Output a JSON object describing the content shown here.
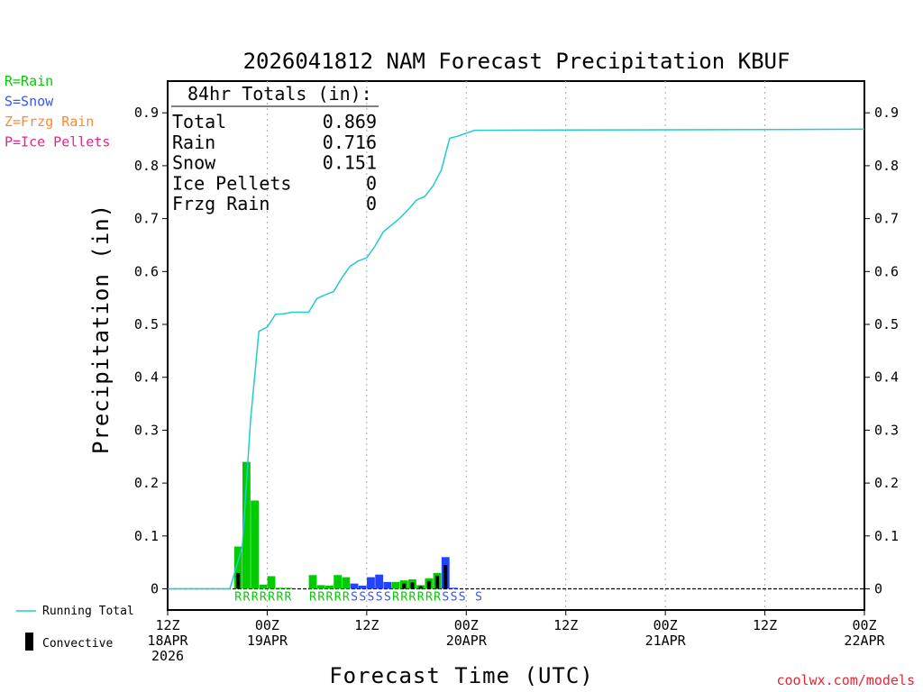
{
  "title": "2026041812 NAM Forecast Precipitation KBUF",
  "credit": "coolwx.com/models",
  "ptype_legend": [
    {
      "text": "R=Rain",
      "color": "#00cc00"
    },
    {
      "text": "S=Snow",
      "color": "#3355ff"
    },
    {
      "text": "Z=Frzg Rain",
      "color": "#ff8833"
    },
    {
      "text": "P=Ice Pellets",
      "color": "#ee2288"
    }
  ],
  "totals_box": {
    "header": "84hr Totals (in):",
    "rows": [
      {
        "label": "Total",
        "value": "0.869"
      },
      {
        "label": "Rain",
        "value": "0.716"
      },
      {
        "label": "Snow",
        "value": "0.151"
      },
      {
        "label": "Ice Pellets",
        "value": "0"
      },
      {
        "label": "Frzg Rain",
        "value": "0"
      }
    ]
  },
  "bottom_legend": {
    "running_total": "Running Total",
    "convective": "Convective"
  },
  "colors": {
    "rain": "#00cc00",
    "snow": "#2244ff",
    "running_total": "#22cccc",
    "convective": "#000000"
  },
  "chart_data": {
    "type": "bar",
    "title": "2026041812 NAM Forecast Precipitation KBUF",
    "xlabel": "Forecast Time (UTC)",
    "ylabel": "Precipitation (in)",
    "ylim": [
      -0.04,
      0.96
    ],
    "xlim_hours": [
      0,
      84
    ],
    "y_ticks": [
      0,
      0.1,
      0.2,
      0.3,
      0.4,
      0.5,
      0.6,
      0.7,
      0.8,
      0.9
    ],
    "y_tick_labels": [
      "0",
      "0.1",
      "0.2",
      "0.3",
      "0.4",
      "0.5",
      "0.6",
      "0.7",
      "0.8",
      "0.9"
    ],
    "x_ticks": [
      {
        "hour": 0,
        "lines": [
          "12Z",
          "18APR",
          "2026"
        ]
      },
      {
        "hour": 12,
        "lines": [
          "00Z",
          "19APR"
        ]
      },
      {
        "hour": 24,
        "lines": [
          "12Z"
        ]
      },
      {
        "hour": 36,
        "lines": [
          "00Z",
          "20APR"
        ]
      },
      {
        "hour": 48,
        "lines": [
          "12Z"
        ]
      },
      {
        "hour": 60,
        "lines": [
          "00Z",
          "21APR"
        ]
      },
      {
        "hour": 72,
        "lines": [
          "12Z"
        ]
      },
      {
        "hour": 84,
        "lines": [
          "00Z",
          "22APR"
        ]
      }
    ],
    "grid_vertical_dotted": true,
    "bars": [
      {
        "hour": 9,
        "value": 0.08,
        "ptype": "R",
        "conv": 0.03
      },
      {
        "hour": 10,
        "value": 0.24,
        "ptype": "R",
        "conv": 0
      },
      {
        "hour": 11,
        "value": 0.167,
        "ptype": "R",
        "conv": 0
      },
      {
        "hour": 12,
        "value": 0.008,
        "ptype": "R",
        "conv": 0
      },
      {
        "hour": 13,
        "value": 0.024,
        "ptype": "R",
        "conv": 0
      },
      {
        "hour": 14,
        "value": 0.002,
        "ptype": "R",
        "conv": 0
      },
      {
        "hour": 15,
        "value": 0.002,
        "ptype": "R",
        "conv": 0
      },
      {
        "hour": 18,
        "value": 0.026,
        "ptype": "R",
        "conv": 0
      },
      {
        "hour": 19,
        "value": 0.007,
        "ptype": "R",
        "conv": 0
      },
      {
        "hour": 20,
        "value": 0.006,
        "ptype": "R",
        "conv": 0
      },
      {
        "hour": 21,
        "value": 0.026,
        "ptype": "R",
        "conv": 0
      },
      {
        "hour": 22,
        "value": 0.022,
        "ptype": "R",
        "conv": 0
      },
      {
        "hour": 23,
        "value": 0.01,
        "ptype": "S",
        "conv": 0
      },
      {
        "hour": 24,
        "value": 0.006,
        "ptype": "S",
        "conv": 0
      },
      {
        "hour": 25,
        "value": 0.022,
        "ptype": "S",
        "conv": 0
      },
      {
        "hour": 26,
        "value": 0.027,
        "ptype": "S",
        "conv": 0
      },
      {
        "hour": 27,
        "value": 0.013,
        "ptype": "S",
        "conv": 0
      },
      {
        "hour": 28,
        "value": 0.013,
        "ptype": "R",
        "conv": 0
      },
      {
        "hour": 29,
        "value": 0.016,
        "ptype": "R",
        "conv": 0.01
      },
      {
        "hour": 30,
        "value": 0.018,
        "ptype": "R",
        "conv": 0.012
      },
      {
        "hour": 31,
        "value": 0.007,
        "ptype": "R",
        "conv": 0.005
      },
      {
        "hour": 32,
        "value": 0.02,
        "ptype": "R",
        "conv": 0.015
      },
      {
        "hour": 33,
        "value": 0.03,
        "ptype": "R",
        "conv": 0.025
      },
      {
        "hour": 34,
        "value": 0.06,
        "ptype": "S",
        "conv": 0.045
      },
      {
        "hour": 35,
        "value": 0.002,
        "ptype": "S",
        "conv": 0
      }
    ],
    "ptype_labels": [
      {
        "hour": 9,
        "text": "R",
        "color": "#00cc00"
      },
      {
        "hour": 10,
        "text": "R",
        "color": "#00cc00"
      },
      {
        "hour": 11,
        "text": "R",
        "color": "#00cc00"
      },
      {
        "hour": 12,
        "text": "R",
        "color": "#00cc00"
      },
      {
        "hour": 13,
        "text": "R",
        "color": "#00cc00"
      },
      {
        "hour": 14,
        "text": "R",
        "color": "#00cc00"
      },
      {
        "hour": 15,
        "text": "R",
        "color": "#00cc00"
      },
      {
        "hour": 18,
        "text": "R",
        "color": "#00cc00"
      },
      {
        "hour": 19,
        "text": "R",
        "color": "#00cc00"
      },
      {
        "hour": 20,
        "text": "R",
        "color": "#00cc00"
      },
      {
        "hour": 21,
        "text": "R",
        "color": "#00cc00"
      },
      {
        "hour": 22,
        "text": "R",
        "color": "#00cc00"
      },
      {
        "hour": 23,
        "text": "S",
        "color": "#3355ff"
      },
      {
        "hour": 24,
        "text": "S",
        "color": "#3355ff"
      },
      {
        "hour": 25,
        "text": "S",
        "color": "#3355ff"
      },
      {
        "hour": 26,
        "text": "S",
        "color": "#3355ff"
      },
      {
        "hour": 27,
        "text": "S",
        "color": "#3355ff"
      },
      {
        "hour": 28,
        "text": "R",
        "color": "#00cc00"
      },
      {
        "hour": 29,
        "text": "R",
        "color": "#00cc00"
      },
      {
        "hour": 30,
        "text": "R",
        "color": "#00cc00"
      },
      {
        "hour": 31,
        "text": "R",
        "color": "#00cc00"
      },
      {
        "hour": 32,
        "text": "R",
        "color": "#00cc00"
      },
      {
        "hour": 33,
        "text": "R",
        "color": "#00cc00"
      },
      {
        "hour": 34,
        "text": "S",
        "color": "#3355ff"
      },
      {
        "hour": 35,
        "text": "S",
        "color": "#3355ff"
      },
      {
        "hour": 36,
        "text": "S",
        "color": "#3355ff"
      },
      {
        "hour": 38,
        "text": "S",
        "color": "#3355ff"
      }
    ],
    "running_total": [
      {
        "hour": 0,
        "value": 0
      },
      {
        "hour": 7.5,
        "value": 0
      },
      {
        "hour": 9,
        "value": 0.08
      },
      {
        "hour": 10,
        "value": 0.32
      },
      {
        "hour": 11,
        "value": 0.487
      },
      {
        "hour": 12,
        "value": 0.495
      },
      {
        "hour": 13,
        "value": 0.519
      },
      {
        "hour": 14,
        "value": 0.52
      },
      {
        "hour": 15,
        "value": 0.523
      },
      {
        "hour": 17,
        "value": 0.523
      },
      {
        "hour": 18,
        "value": 0.549
      },
      {
        "hour": 19,
        "value": 0.556
      },
      {
        "hour": 20,
        "value": 0.562
      },
      {
        "hour": 21,
        "value": 0.588
      },
      {
        "hour": 22,
        "value": 0.61
      },
      {
        "hour": 23,
        "value": 0.62
      },
      {
        "hour": 24,
        "value": 0.626
      },
      {
        "hour": 25,
        "value": 0.648
      },
      {
        "hour": 26,
        "value": 0.675
      },
      {
        "hour": 27,
        "value": 0.688
      },
      {
        "hour": 28,
        "value": 0.701
      },
      {
        "hour": 29,
        "value": 0.717
      },
      {
        "hour": 30,
        "value": 0.735
      },
      {
        "hour": 31,
        "value": 0.742
      },
      {
        "hour": 32,
        "value": 0.762
      },
      {
        "hour": 33,
        "value": 0.792
      },
      {
        "hour": 34,
        "value": 0.852
      },
      {
        "hour": 35,
        "value": 0.856
      },
      {
        "hour": 37,
        "value": 0.867
      },
      {
        "hour": 84,
        "value": 0.869
      }
    ]
  }
}
